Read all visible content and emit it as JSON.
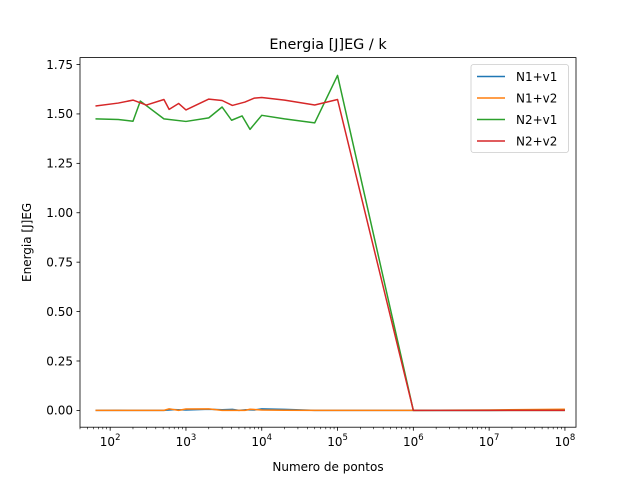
{
  "chart_data": {
    "type": "line",
    "title": "Energia [J]EG / k",
    "xlabel": "Numero de pontos",
    "ylabel": "Energia [J]EG",
    "xscale": "log",
    "xlim": [
      40,
      140000000
    ],
    "ylim": [
      -0.085,
      1.785
    ],
    "xticks": [
      {
        "value": 100,
        "base": "10",
        "exp": "2"
      },
      {
        "value": 1000,
        "base": "10",
        "exp": "3"
      },
      {
        "value": 10000,
        "base": "10",
        "exp": "4"
      },
      {
        "value": 100000,
        "base": "10",
        "exp": "5"
      },
      {
        "value": 1000000,
        "base": "10",
        "exp": "6"
      },
      {
        "value": 10000000,
        "base": "10",
        "exp": "7"
      },
      {
        "value": 100000000,
        "base": "10",
        "exp": "8"
      }
    ],
    "yticks": [
      {
        "value": 0.0,
        "label": "0.00"
      },
      {
        "value": 0.25,
        "label": "0.25"
      },
      {
        "value": 0.5,
        "label": "0.50"
      },
      {
        "value": 0.75,
        "label": "0.75"
      },
      {
        "value": 1.0,
        "label": "1.00"
      },
      {
        "value": 1.25,
        "label": "1.25"
      },
      {
        "value": 1.5,
        "label": "1.50"
      },
      {
        "value": 1.75,
        "label": "1.75"
      }
    ],
    "legend": "top-right",
    "series": [
      {
        "name": "N1+v1",
        "color": "#1f77b4",
        "points": [
          [
            64,
            0
          ],
          [
            128,
            0.001
          ],
          [
            200,
            0
          ],
          [
            300,
            0
          ],
          [
            512,
            0
          ],
          [
            700,
            0.004
          ],
          [
            1000,
            0.002
          ],
          [
            2000,
            0.006
          ],
          [
            3000,
            0.003
          ],
          [
            4096,
            0.005
          ],
          [
            5000,
            0
          ],
          [
            6000,
            0.003
          ],
          [
            8000,
            0.002
          ],
          [
            10000,
            0.008
          ],
          [
            20000,
            0.005
          ],
          [
            50000,
            0
          ],
          [
            100000,
            0
          ],
          [
            1000000,
            0
          ],
          [
            10000000,
            0
          ],
          [
            100000000,
            0.003
          ]
        ]
      },
      {
        "name": "N1+v2",
        "color": "#ff7f0e",
        "points": [
          [
            64,
            0
          ],
          [
            128,
            0
          ],
          [
            200,
            0
          ],
          [
            300,
            0
          ],
          [
            512,
            0
          ],
          [
            600,
            0.008
          ],
          [
            800,
            0
          ],
          [
            1000,
            0.007
          ],
          [
            2000,
            0.008
          ],
          [
            3000,
            0
          ],
          [
            4096,
            0
          ],
          [
            6000,
            0
          ],
          [
            7000,
            0.006
          ],
          [
            10000,
            0.002
          ],
          [
            20000,
            0.001
          ],
          [
            50000,
            0
          ],
          [
            100000,
            0
          ],
          [
            1000000,
            0
          ],
          [
            10000000,
            0.002
          ],
          [
            100000000,
            0.006
          ]
        ]
      },
      {
        "name": "N2+v1",
        "color": "#2ca02c",
        "points": [
          [
            64,
            1.475
          ],
          [
            128,
            1.472
          ],
          [
            200,
            1.463
          ],
          [
            250,
            1.565
          ],
          [
            512,
            1.475
          ],
          [
            1000,
            1.462
          ],
          [
            2000,
            1.48
          ],
          [
            3000,
            1.535
          ],
          [
            4000,
            1.468
          ],
          [
            5500,
            1.49
          ],
          [
            7000,
            1.422
          ],
          [
            10000,
            1.493
          ],
          [
            20000,
            1.475
          ],
          [
            50000,
            1.455
          ],
          [
            100000,
            1.695
          ],
          [
            1000000,
            0
          ],
          [
            10000000,
            0
          ],
          [
            100000000,
            0
          ]
        ]
      },
      {
        "name": "N2+v2",
        "color": "#d62728",
        "points": [
          [
            64,
            1.54
          ],
          [
            128,
            1.555
          ],
          [
            200,
            1.57
          ],
          [
            300,
            1.545
          ],
          [
            512,
            1.573
          ],
          [
            600,
            1.523
          ],
          [
            800,
            1.553
          ],
          [
            1000,
            1.52
          ],
          [
            2000,
            1.575
          ],
          [
            3000,
            1.568
          ],
          [
            4096,
            1.543
          ],
          [
            6000,
            1.56
          ],
          [
            8000,
            1.58
          ],
          [
            10000,
            1.583
          ],
          [
            20000,
            1.57
          ],
          [
            50000,
            1.545
          ],
          [
            100000,
            1.573
          ],
          [
            1000000,
            0
          ],
          [
            10000000,
            0
          ],
          [
            100000000,
            0
          ]
        ]
      }
    ]
  }
}
